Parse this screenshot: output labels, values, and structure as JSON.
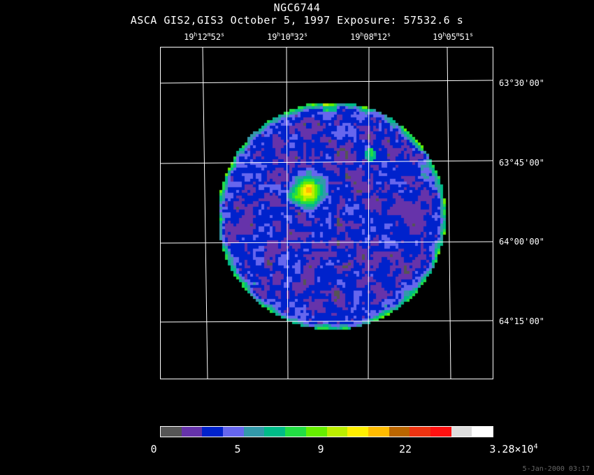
{
  "title": "NGC6744",
  "subtitle": "ASCA GIS2,GIS3 October 5, 1997 Exposure: 57532.6 s",
  "ra_labels": [
    {
      "h": "19",
      "m": "12",
      "s": "52"
    },
    {
      "h": "19",
      "m": "10",
      "s": "32"
    },
    {
      "h": "19",
      "m": "08",
      "s": "12"
    },
    {
      "h": "19",
      "m": "05",
      "s": "51"
    }
  ],
  "dec_labels": [
    "63°30'00\"",
    "63°45'00\"",
    "64°00'00\"",
    "64°15'00\""
  ],
  "colorbar": {
    "colors": [
      "#555555",
      "#6633aa",
      "#0022cc",
      "#6666ee",
      "#3399aa",
      "#00bb88",
      "#22dd44",
      "#66ee00",
      "#bbee00",
      "#ffee00",
      "#ffbb00",
      "#bb6600",
      "#ee3311",
      "#ff1111",
      "#dddddd",
      "#ffffff"
    ],
    "labels": {
      "l0": "0",
      "l1": "5",
      "l2": "9",
      "l3": "22",
      "l4_base": "3.28×10",
      "l4_exp": "4"
    }
  },
  "timestamp": "5-Jan-2000 03:17"
}
